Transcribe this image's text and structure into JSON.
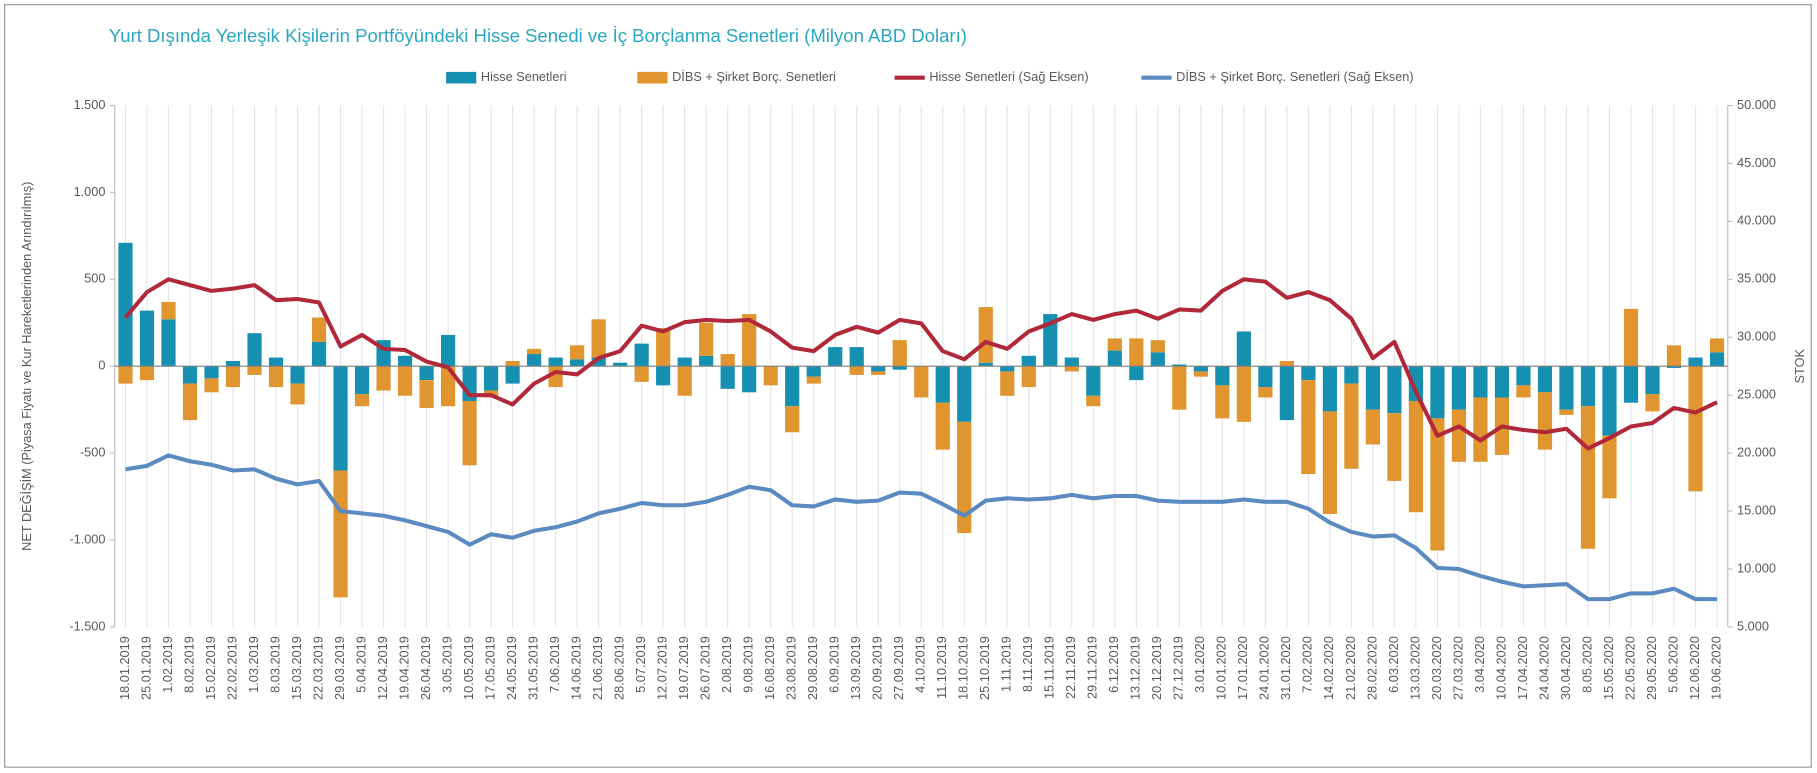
{
  "chart_data": {
    "type": "bar",
    "stacked": true,
    "title": "Yurt Dışında Yerleşik Kişilerin Portföyündeki Hisse Senedi ve İç Borçlanma Senetleri (Milyon ABD Doları)",
    "ylabel": "NET DEĞİŞİM (Piyasa Fiyatı ve Kur Hareketlerinden Arındırılmış)",
    "y2label": "STOK",
    "legend": "top",
    "categories": [
      "18.01.2019",
      "25.01.2019",
      "1.02.2019",
      "8.02.2019",
      "15.02.2019",
      "22.02.2019",
      "1.03.2019",
      "8.03.2019",
      "15.03.2019",
      "22.03.2019",
      "29.03.2019",
      "5.04.2019",
      "12.04.2019",
      "19.04.2019",
      "26.04.2019",
      "3.05.2019",
      "10.05.2019",
      "17.05.2019",
      "24.05.2019",
      "31.05.2019",
      "7.06.2019",
      "14.06.2019",
      "21.06.2019",
      "28.06.2019",
      "5.07.2019",
      "12.07.2019",
      "19.07.2019",
      "26.07.2019",
      "2.08.2019",
      "9.08.2019",
      "16.08.2019",
      "23.08.2019",
      "29.08.2019",
      "6.09.2019",
      "13.09.2019",
      "20.09.2019",
      "27.09.2019",
      "4.10.2019",
      "11.10.2019",
      "18.10.2019",
      "25.10.2019",
      "1.11.2019",
      "8.11.2019",
      "15.11.2019",
      "22.11.2019",
      "29.11.2019",
      "6.12.2019",
      "13.12.2019",
      "20.12.2019",
      "27.12.2019",
      "3.01.2020",
      "10.01.2020",
      "17.01.2020",
      "24.01.2020",
      "31.01.2020",
      "7.02.2020",
      "14.02.2020",
      "21.02.2020",
      "28.02.2020",
      "6.03.2020",
      "13.03.2020",
      "20.03.2020",
      "27.03.2020",
      "3.04.2020",
      "10.04.2020",
      "17.04.2020",
      "24.04.2020",
      "30.04.2020",
      "8.05.2020",
      "15.05.2020",
      "22.05.2020",
      "29.05.2020",
      "5.06.2020",
      "12.06.2020",
      "19.06.2020"
    ],
    "series": [
      {
        "name": "Hisse Senetleri",
        "type": "bar",
        "color": "#1590b0",
        "values": [
          710,
          320,
          270,
          -100,
          -70,
          30,
          190,
          50,
          -100,
          140,
          -600,
          -160,
          150,
          60,
          -80,
          180,
          -200,
          -140,
          -100,
          70,
          50,
          40,
          50,
          20,
          130,
          -110,
          50,
          60,
          -130,
          -150,
          0,
          -230,
          -60,
          110,
          110,
          -30,
          -20,
          0,
          -210,
          -320,
          20,
          -30,
          60,
          300,
          50,
          -170,
          90,
          -80,
          80,
          10,
          -30,
          -110,
          200,
          -120,
          -310,
          -80,
          -260,
          -100,
          -250,
          -270,
          -200,
          -300,
          -250,
          -180,
          -180,
          -110,
          -150,
          -250,
          -230,
          -400,
          -210,
          -160,
          -10,
          50,
          80
        ]
      },
      {
        "name": "DİBS + Şirket Borç. Senetleri",
        "type": "bar",
        "color": "#e0952f",
        "values": [
          -100,
          -80,
          100,
          -210,
          -80,
          -120,
          -50,
          -120,
          -120,
          140,
          -730,
          -70,
          -140,
          -170,
          -160,
          -230,
          -370,
          -40,
          30,
          30,
          -120,
          80,
          220,
          0,
          -90,
          220,
          -170,
          190,
          70,
          300,
          -110,
          -150,
          -40,
          0,
          -50,
          -20,
          150,
          -180,
          -270,
          -640,
          320,
          -140,
          -120,
          0,
          -30,
          -60,
          70,
          160,
          70,
          -250,
          -30,
          -190,
          -320,
          -60,
          30,
          -540,
          -590,
          -490,
          -200,
          -390,
          -640,
          -760,
          -300,
          -370,
          -330,
          -70,
          -330,
          -30,
          -820,
          -360,
          330,
          -100,
          120,
          -720,
          80
        ]
      },
      {
        "name": "Hisse Senetleri (Sağ Eksen)",
        "type": "line",
        "axis": "y2",
        "color": "#b0283a",
        "values": [
          31700,
          33900,
          35000,
          34500,
          34000,
          34200,
          34500,
          33200,
          33300,
          33000,
          29200,
          30200,
          29000,
          28900,
          27900,
          27400,
          25000,
          25000,
          24200,
          26000,
          27000,
          26800,
          28200,
          28800,
          31000,
          30500,
          31300,
          31500,
          31400,
          31500,
          30500,
          29100,
          28800,
          30200,
          30900,
          30400,
          31500,
          31200,
          28800,
          28100,
          29600,
          29000,
          30500,
          31200,
          32000,
          31500,
          32000,
          32300,
          31600,
          32400,
          32300,
          34000,
          35000,
          34800,
          33400,
          33900,
          33200,
          31600,
          28200,
          29600,
          25300,
          21500,
          22300,
          21100,
          22300,
          22000,
          21800,
          22100,
          20400,
          21300,
          22300,
          22600,
          23900,
          23500,
          24400
        ]
      },
      {
        "name": "DİBS + Şirket Borç. Senetleri (Sağ Eksen)",
        "type": "line",
        "axis": "y2",
        "color": "#5a8ac0",
        "values": [
          18600,
          18900,
          19800,
          19300,
          19000,
          18500,
          18600,
          17800,
          17300,
          17600,
          15000,
          14800,
          14600,
          14200,
          13700,
          13200,
          12100,
          13000,
          12700,
          13300,
          13600,
          14100,
          14800,
          15200,
          15700,
          15500,
          15500,
          15800,
          16400,
          17100,
          16800,
          15500,
          15400,
          16000,
          15800,
          15900,
          16600,
          16500,
          15600,
          14600,
          15900,
          16100,
          16000,
          16100,
          16400,
          16100,
          16300,
          16300,
          15900,
          15800,
          15800,
          15800,
          16000,
          15800,
          15800,
          15200,
          14000,
          13200,
          12800,
          12900,
          11800,
          10100,
          10000,
          9400,
          8900,
          8500,
          8600,
          8700,
          7400,
          7400,
          7900,
          7900,
          8300,
          7400,
          7400
        ]
      }
    ],
    "ylim": [
      -1500,
      1500
    ],
    "yticks": [
      {
        "value": -1500,
        "label": "-1.500"
      },
      {
        "value": -1000,
        "label": "-1.000"
      },
      -500,
      0,
      500,
      {
        "value": 1000,
        "label": "1.000"
      },
      {
        "value": 1500,
        "label": "1.500"
      }
    ],
    "y2lim": [
      5000,
      50000
    ],
    "y2ticks": [
      {
        "value": 5000,
        "label": "5.000"
      },
      {
        "value": 10000,
        "label": "10.000"
      },
      {
        "value": 15000,
        "label": "15.000"
      },
      {
        "value": 20000,
        "label": "20.000"
      },
      {
        "value": 25000,
        "label": "25.000"
      },
      {
        "value": 30000,
        "label": "30.000"
      },
      {
        "value": 35000,
        "label": "35.000"
      },
      {
        "value": 40000,
        "label": "40.000"
      },
      {
        "value": 45000,
        "label": "45.000"
      },
      {
        "value": 50000,
        "label": "50.000"
      }
    ],
    "grid": "x"
  }
}
